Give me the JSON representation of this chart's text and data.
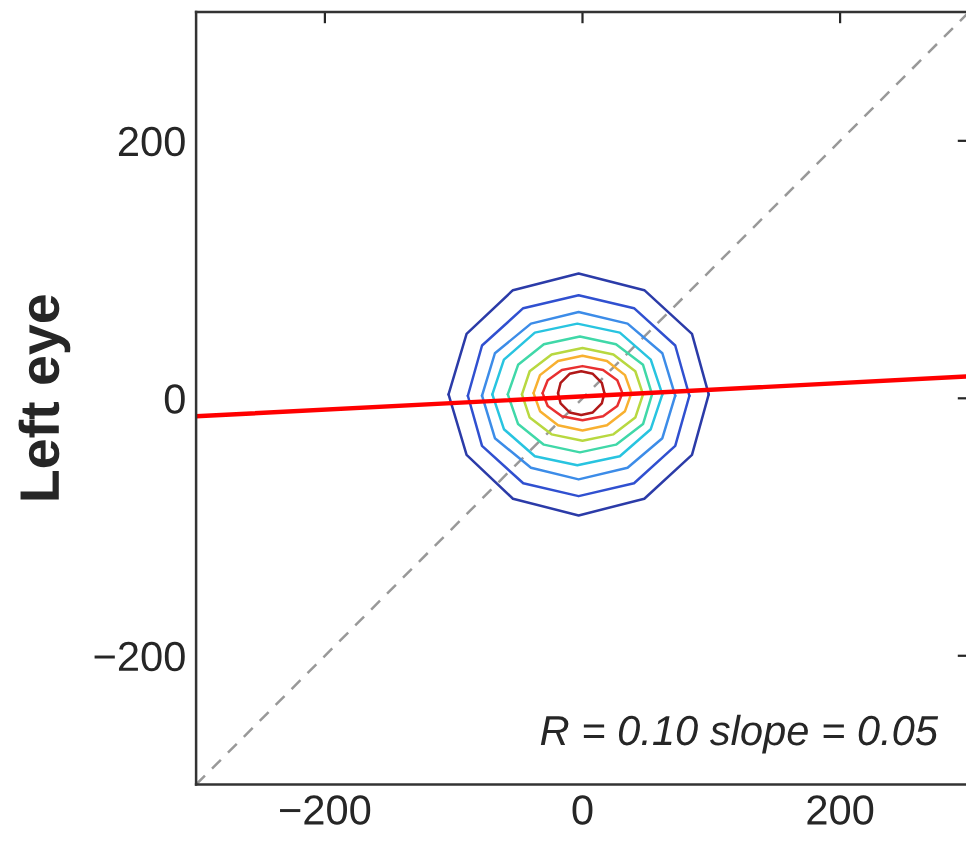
{
  "chart_data": {
    "type": "line",
    "ylabel": "Left eye",
    "xlim": [
      -300,
      300
    ],
    "ylim": [
      -300,
      300
    ],
    "xticks": [
      {
        "value": -200,
        "label": "−200"
      },
      0,
      200
    ],
    "yticks": [
      {
        "value": -200,
        "label": "−200"
      },
      0,
      200
    ],
    "grid": false,
    "legend": false,
    "marker": "none",
    "annotations": [
      "R = 0.10 slope = 0.05"
    ],
    "series": [
      {
        "color": "#999999",
        "line_style": "dashed",
        "x": [
          -300,
          300
        ],
        "values": [
          -300,
          300
        ]
      },
      {
        "color": "#2b3ba8",
        "line_style": "solid",
        "x": [
          -104,
          -90,
          -54,
          -3,
          48,
          85,
          98
        ],
        "values": [
          3,
          50,
          84,
          97,
          84,
          50,
          3
        ]
      },
      {
        "color": "#2b3ba8",
        "line_style": "solid",
        "x": [
          -104,
          -90,
          -54,
          -3,
          48,
          85,
          98
        ],
        "values": [
          3,
          -44,
          -78,
          -91,
          -78,
          -44,
          3
        ]
      },
      {
        "color": "#3050d0",
        "line_style": "solid",
        "x": [
          -89,
          -78,
          -46,
          -3,
          40,
          72,
          83
        ],
        "values": [
          2,
          41,
          70,
          80,
          70,
          41,
          2
        ]
      },
      {
        "color": "#3050d0",
        "line_style": "solid",
        "x": [
          -89,
          -78,
          -46,
          -3,
          40,
          72,
          83
        ],
        "values": [
          2,
          -37,
          -66,
          -76,
          -66,
          -37,
          2
        ]
      },
      {
        "color": "#3c8ce8",
        "line_style": "solid",
        "x": [
          -78,
          -68,
          -40,
          -3,
          35,
          62,
          72
        ],
        "values": [
          2,
          35,
          58,
          67,
          58,
          35,
          2
        ]
      },
      {
        "color": "#3c8ce8",
        "line_style": "solid",
        "x": [
          -78,
          -68,
          -40,
          -3,
          35,
          62,
          72
        ],
        "values": [
          2,
          -31,
          -54,
          -63,
          -54,
          -31,
          2
        ]
      },
      {
        "color": "#28c4e0",
        "line_style": "solid",
        "x": [
          -70,
          -61,
          -37,
          -4,
          29,
          53,
          62
        ],
        "values": [
          3,
          30,
          51,
          58,
          51,
          30,
          3
        ]
      },
      {
        "color": "#28c4e0",
        "line_style": "solid",
        "x": [
          -70,
          -61,
          -37,
          -4,
          29,
          53,
          62
        ],
        "values": [
          3,
          -24,
          -45,
          -52,
          -45,
          -24,
          3
        ]
      },
      {
        "color": "#40d8a8",
        "line_style": "solid",
        "x": [
          -58,
          -50,
          -30,
          -2,
          26,
          47,
          54
        ],
        "values": [
          3,
          26,
          42,
          48,
          42,
          26,
          3
        ]
      },
      {
        "color": "#40d8a8",
        "line_style": "solid",
        "x": [
          -58,
          -50,
          -30,
          -2,
          26,
          47,
          54
        ],
        "values": [
          3,
          -20,
          -36,
          -42,
          -36,
          -20,
          3
        ]
      },
      {
        "color": "#b8d840",
        "line_style": "solid",
        "x": [
          -47,
          -41,
          -24,
          0,
          24,
          41,
          47
        ],
        "values": [
          3,
          21,
          34,
          39,
          34,
          21,
          3
        ]
      },
      {
        "color": "#b8d840",
        "line_style": "solid",
        "x": [
          -47,
          -41,
          -24,
          0,
          24,
          41,
          47
        ],
        "values": [
          3,
          -15,
          -28,
          -33,
          -28,
          -15,
          3
        ]
      },
      {
        "color": "#f8b030",
        "line_style": "solid",
        "x": [
          -38,
          -33,
          -19,
          0,
          19,
          33,
          38
        ],
        "values": [
          4,
          18,
          29,
          33,
          29,
          18,
          4
        ]
      },
      {
        "color": "#f8b030",
        "line_style": "solid",
        "x": [
          -38,
          -33,
          -19,
          0,
          19,
          33,
          38
        ],
        "values": [
          4,
          -10,
          -21,
          -25,
          -21,
          -10,
          4
        ]
      },
      {
        "color": "#e83030",
        "line_style": "solid",
        "x": [
          -31,
          -27,
          -16,
          0,
          16,
          27,
          31
        ],
        "values": [
          4,
          14,
          22,
          25,
          22,
          14,
          4
        ]
      },
      {
        "color": "#e83030",
        "line_style": "solid",
        "x": [
          -31,
          -27,
          -16,
          0,
          16,
          27,
          31
        ],
        "values": [
          4,
          -6,
          -14,
          -17,
          -14,
          -6,
          4
        ]
      },
      {
        "color": "#b01818",
        "line_style": "solid",
        "x": [
          -19,
          -17,
          -10,
          -1,
          8,
          15,
          17
        ],
        "values": [
          4,
          12,
          19,
          21,
          19,
          12,
          4
        ]
      },
      {
        "color": "#b01818",
        "line_style": "solid",
        "x": [
          -19,
          -17,
          -10,
          -1,
          8,
          15,
          17
        ],
        "values": [
          4,
          -4,
          -11,
          -13,
          -11,
          -4,
          4
        ]
      },
      {
        "color": "#ff0000",
        "line_style": "solid",
        "x": [
          -300,
          300
        ],
        "values": [
          -14,
          17
        ]
      }
    ]
  }
}
